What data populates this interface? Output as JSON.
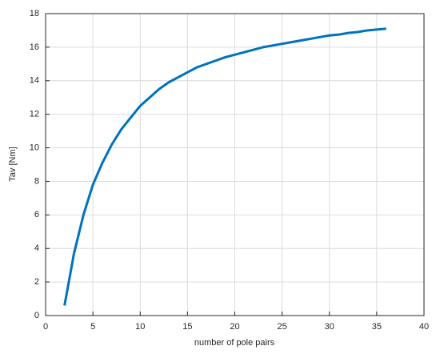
{
  "chart_data": {
    "type": "line",
    "xlabel": "number of pole pairs",
    "ylabel": "Tav [Nm]",
    "x": [
      2,
      3,
      4,
      5,
      6,
      7,
      8,
      9,
      10,
      11,
      12,
      13,
      14,
      15,
      16,
      17,
      18,
      19,
      20,
      21,
      22,
      23,
      24,
      25,
      26,
      27,
      28,
      29,
      30,
      31,
      32,
      33,
      34,
      35,
      36
    ],
    "series": [
      {
        "color": "#0072bd",
        "values": [
          0.6,
          3.7,
          6.0,
          7.8,
          9.1,
          10.2,
          11.1,
          11.8,
          12.5,
          13.0,
          13.5,
          13.9,
          14.2,
          14.5,
          14.8,
          15.0,
          15.2,
          15.4,
          15.55,
          15.7,
          15.85,
          16.0,
          16.1,
          16.2,
          16.3,
          16.4,
          16.5,
          16.6,
          16.7,
          16.75,
          16.85,
          16.9,
          17.0,
          17.05,
          17.1
        ]
      }
    ],
    "xlim": [
      0,
      40
    ],
    "xticks": [
      0,
      5,
      10,
      15,
      20,
      25,
      30,
      35,
      40
    ],
    "ylim": [
      0,
      18
    ],
    "yticks": [
      0,
      2,
      4,
      6,
      8,
      10,
      12,
      14,
      16,
      18
    ],
    "grid": true
  }
}
